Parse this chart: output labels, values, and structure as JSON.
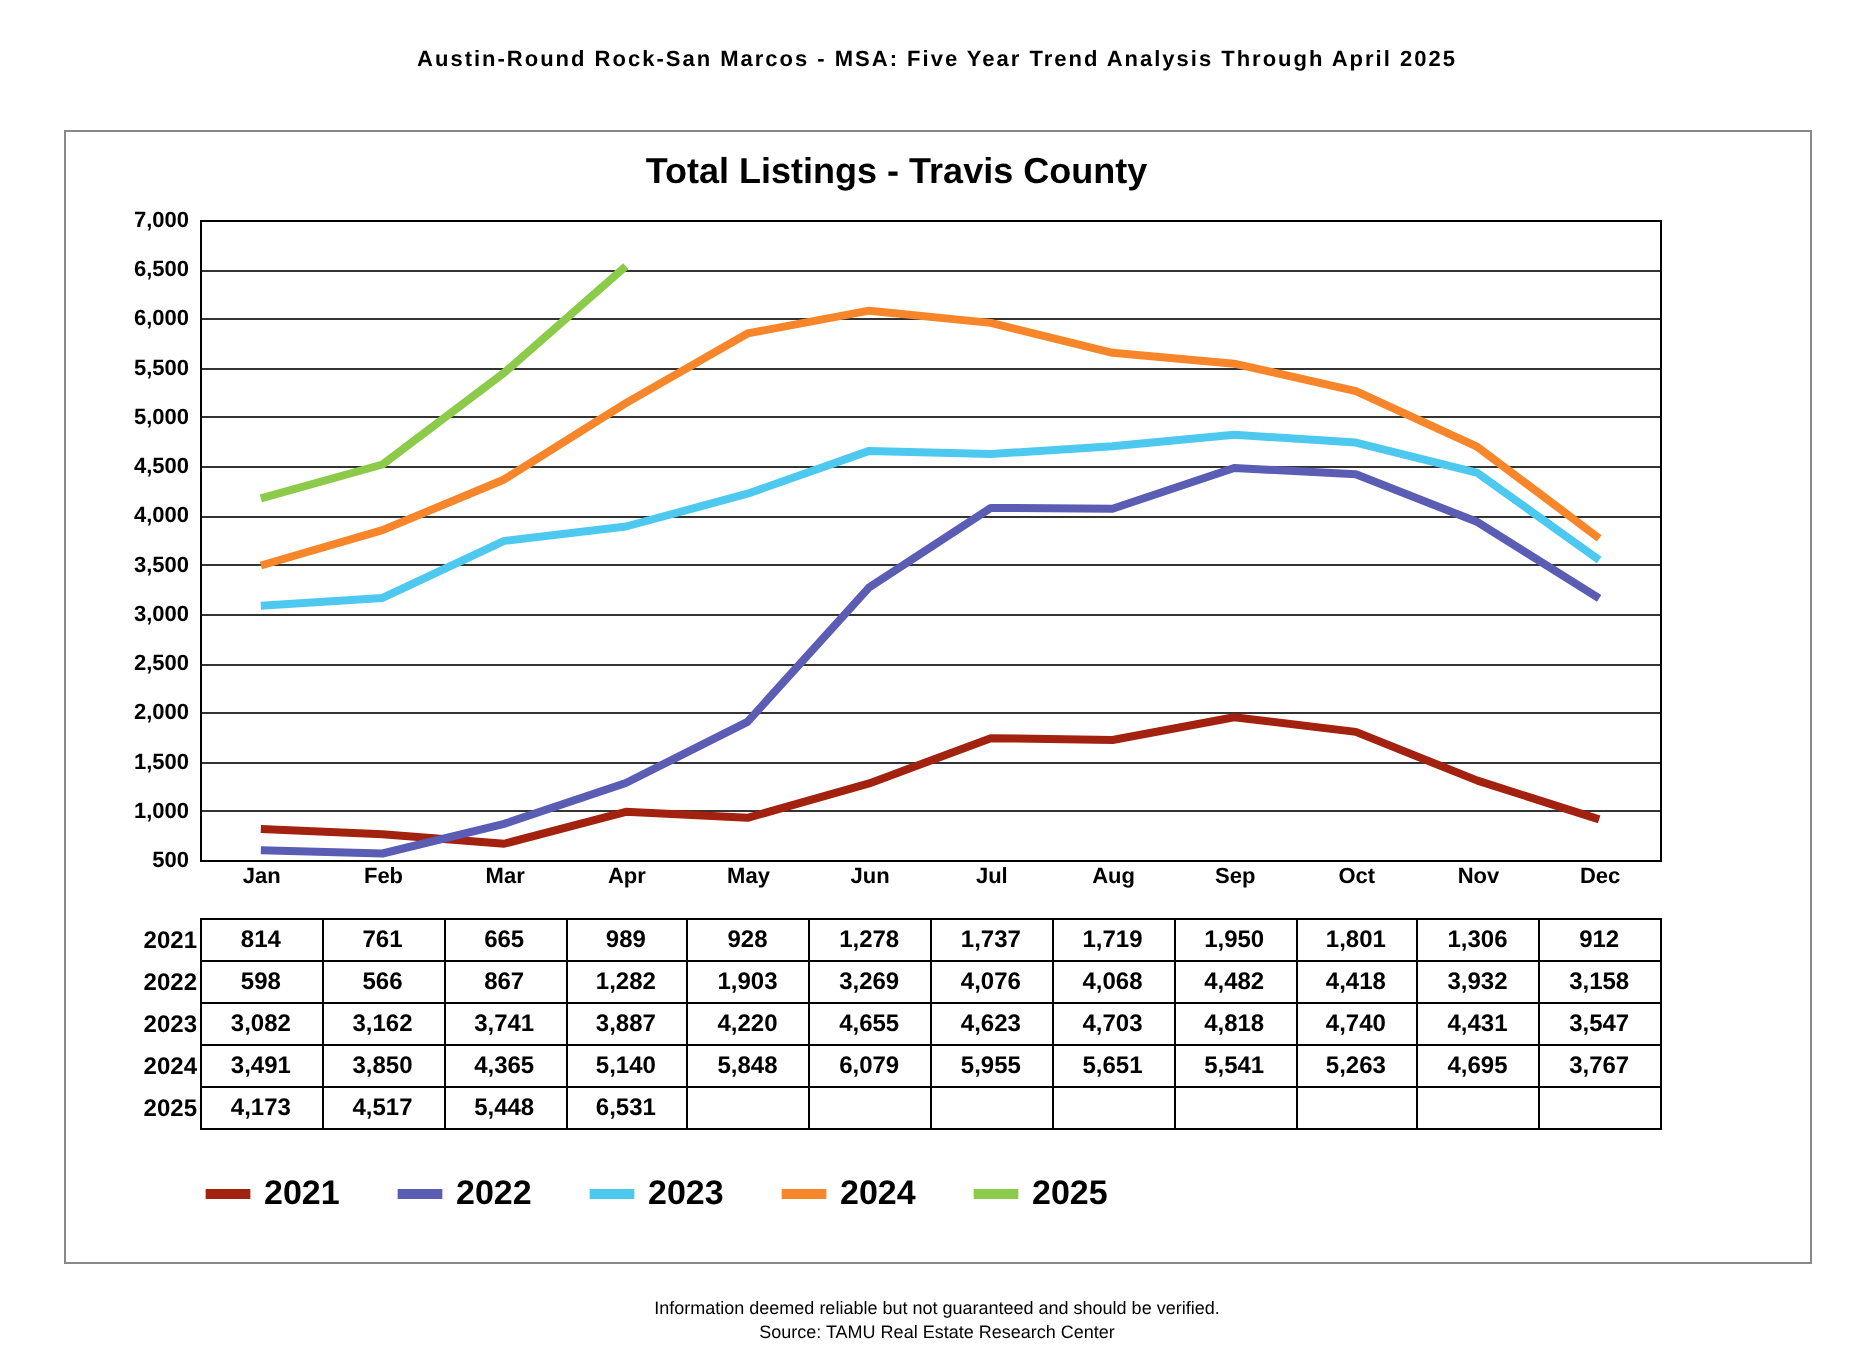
{
  "chart_data": {
    "type": "line",
    "title": "Total Listings - Travis County",
    "annotations": [
      "Austin-Round Rock-San Marcos - MSA: Five Year Trend Analysis Through April 2025",
      "Information deemed reliable but not guaranteed and should be verified.",
      "Source: TAMU Real Estate Research Center"
    ],
    "categories": [
      "Jan",
      "Feb",
      "Mar",
      "Apr",
      "May",
      "Jun",
      "Jul",
      "Aug",
      "Sep",
      "Oct",
      "Nov",
      "Dec"
    ],
    "series": [
      {
        "name": "2021",
        "color": "#a3210f",
        "values": [
          814,
          761,
          665,
          989,
          928,
          1278,
          1737,
          1719,
          1950,
          1801,
          1306,
          912
        ],
        "value_labels": [
          "814",
          "761",
          "665",
          "989",
          "928",
          "1,278",
          "1,737",
          "1,719",
          "1,950",
          "1,801",
          "1,306",
          "912"
        ]
      },
      {
        "name": "2022",
        "color": "#5a5db3",
        "values": [
          598,
          566,
          867,
          1282,
          1903,
          3269,
          4076,
          4068,
          4482,
          4418,
          3932,
          3158
        ],
        "value_labels": [
          "598",
          "566",
          "867",
          "1,282",
          "1,903",
          "3,269",
          "4,076",
          "4,068",
          "4,482",
          "4,418",
          "3,932",
          "3,158"
        ]
      },
      {
        "name": "2023",
        "color": "#4dc9f0",
        "values": [
          3082,
          3162,
          3741,
          3887,
          4220,
          4655,
          4623,
          4703,
          4818,
          4740,
          4431,
          3547
        ],
        "value_labels": [
          "3,082",
          "3,162",
          "3,741",
          "3,887",
          "4,220",
          "4,655",
          "4,623",
          "4,703",
          "4,818",
          "4,740",
          "4,431",
          "3,547"
        ]
      },
      {
        "name": "2024",
        "color": "#f7862a",
        "values": [
          3491,
          3850,
          4365,
          5140,
          5848,
          6079,
          5955,
          5651,
          5541,
          5263,
          4695,
          3767
        ],
        "value_labels": [
          "3,491",
          "3,850",
          "4,365",
          "5,140",
          "5,848",
          "6,079",
          "5,955",
          "5,651",
          "5,541",
          "5,263",
          "4,695",
          "3,767"
        ]
      },
      {
        "name": "2025",
        "color": "#8cca4a",
        "values": [
          4173,
          4517,
          5448,
          6531,
          null,
          null,
          null,
          null,
          null,
          null,
          null,
          null
        ],
        "value_labels": [
          "4,173",
          "4,517",
          "5,448",
          "6,531",
          null,
          null,
          null,
          null,
          null,
          null,
          null,
          null
        ]
      }
    ],
    "ylim": [
      500,
      7000
    ],
    "yticks": [
      500,
      {
        "value": 1000,
        "label": "1,000"
      },
      {
        "value": 1500,
        "label": "1,500"
      },
      {
        "value": 2000,
        "label": "2,000"
      },
      {
        "value": 2500,
        "label": "2,500"
      },
      {
        "value": 3000,
        "label": "3,000"
      },
      {
        "value": 3500,
        "label": "3,500"
      },
      {
        "value": 4000,
        "label": "4,000"
      },
      {
        "value": 4500,
        "label": "4,500"
      },
      {
        "value": 5000,
        "label": "5,000"
      },
      {
        "value": 5500,
        "label": "5,500"
      },
      {
        "value": 6000,
        "label": "6,000"
      },
      {
        "value": 6500,
        "label": "6,500"
      },
      {
        "value": 7000,
        "label": "7,000"
      }
    ],
    "grid": "y",
    "legend": "bottom"
  }
}
